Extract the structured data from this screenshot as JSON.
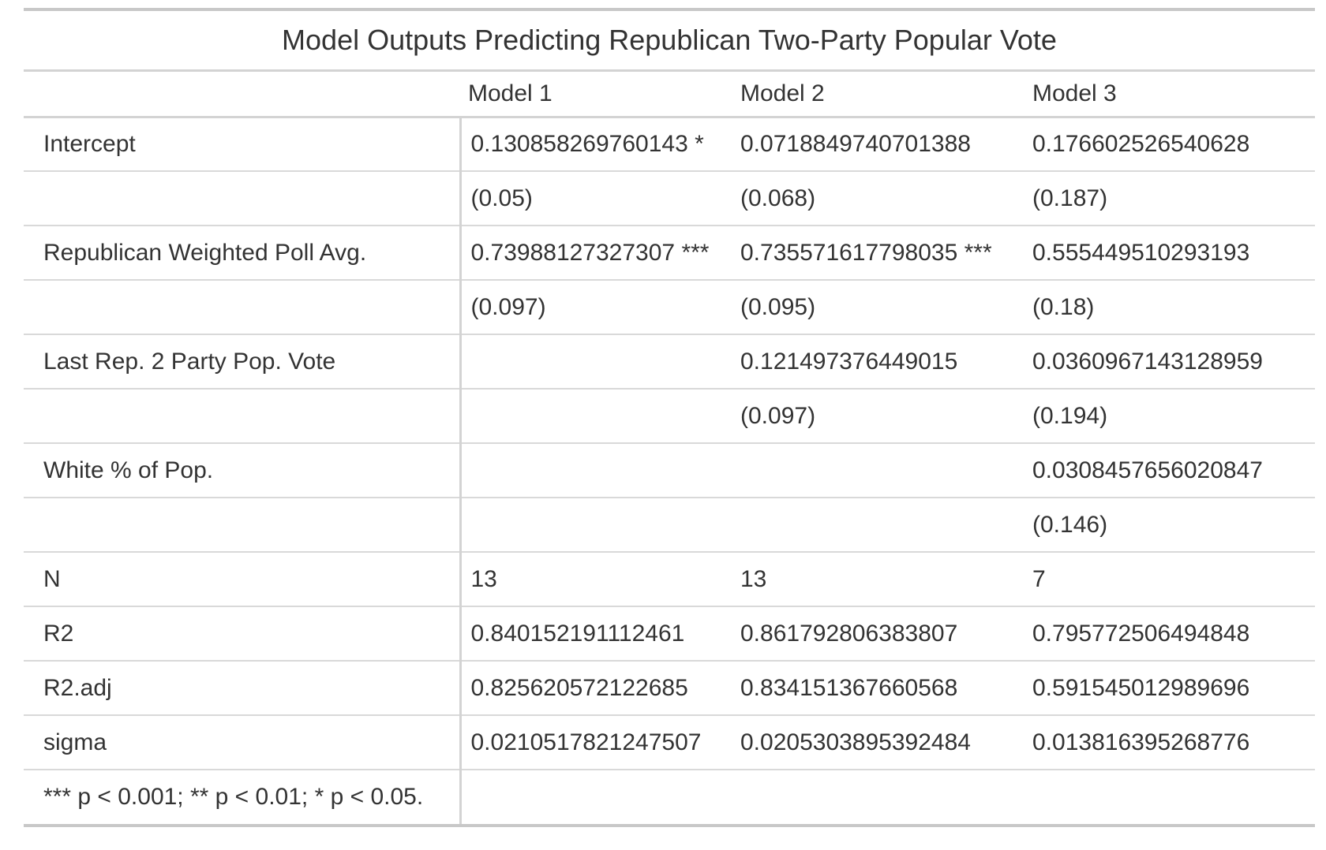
{
  "table": {
    "title": "Model Outputs Predicting Republican Two-Party Popular Vote",
    "columns": [
      "",
      "Model 1",
      "Model 2",
      "Model 3"
    ],
    "rows": [
      [
        "Intercept",
        "0.130858269760143 *",
        "0.0718849740701388",
        "0.176602526540628"
      ],
      [
        "",
        "(0.05)",
        "(0.068)",
        "(0.187)"
      ],
      [
        "Republican Weighted Poll Avg.",
        "0.73988127327307 ***",
        "0.735571617798035 ***",
        "0.555449510293193"
      ],
      [
        "",
        "(0.097)",
        "(0.095)",
        "(0.18)"
      ],
      [
        "Last Rep. 2 Party Pop. Vote",
        "",
        "0.121497376449015",
        "0.0360967143128959"
      ],
      [
        "",
        "",
        "(0.097)",
        "(0.194)"
      ],
      [
        "White % of Pop.",
        "",
        "",
        "0.0308457656020847"
      ],
      [
        "",
        "",
        "",
        "(0.146)"
      ],
      [
        "N",
        "13",
        "13",
        "7"
      ],
      [
        "R2",
        "0.840152191112461",
        "0.861792806383807",
        "0.795772506494848"
      ],
      [
        "R2.adj",
        "0.825620572122685",
        "0.834151367660568",
        "0.591545012989696"
      ],
      [
        "sigma",
        "0.0210517821247507",
        "0.0205303895392484",
        "0.013816395268776"
      ]
    ],
    "footnote": "*** p < 0.001; ** p < 0.01; * p < 0.05."
  }
}
